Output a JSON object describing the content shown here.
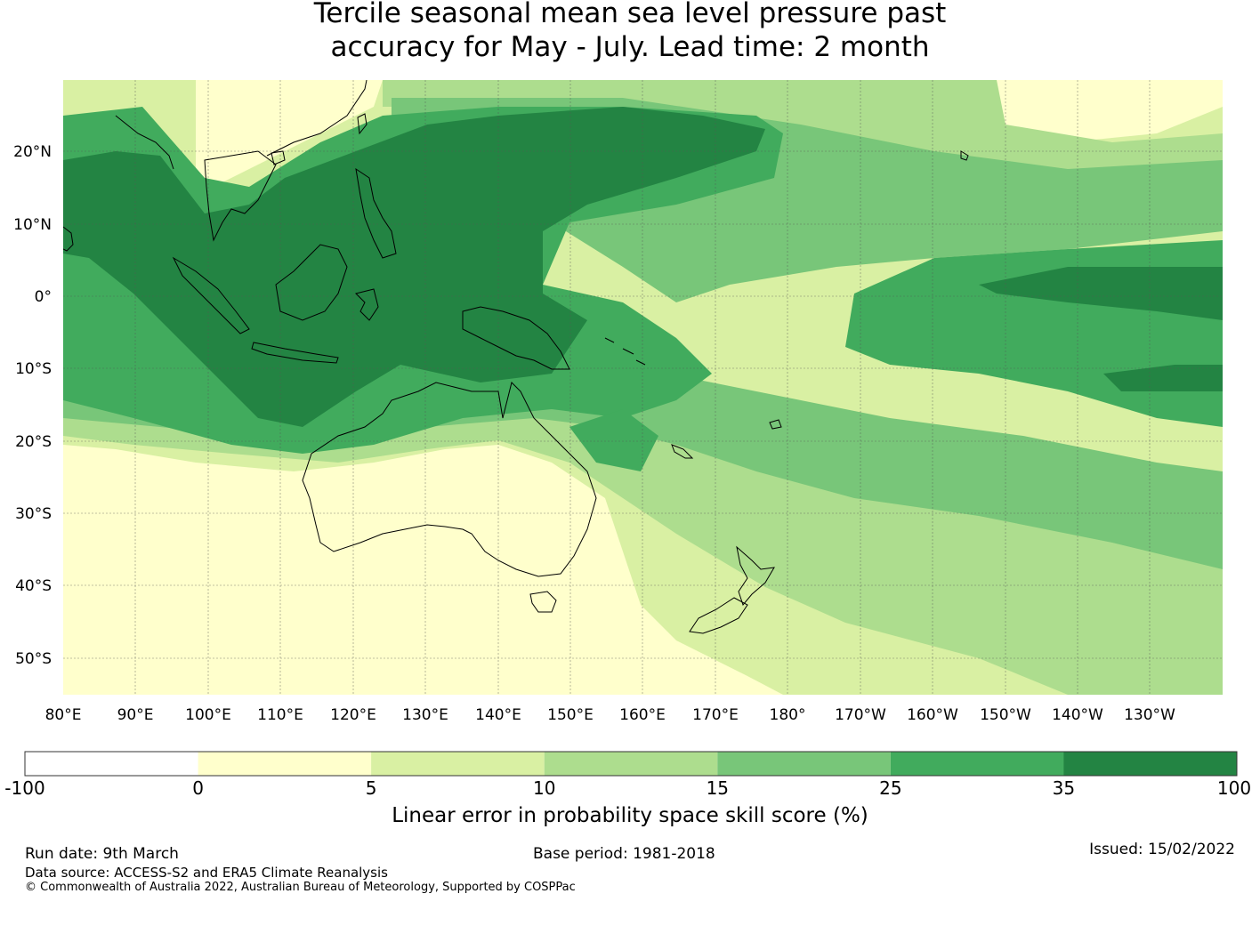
{
  "title": {
    "line1": "Tercile seasonal mean sea level pressure past",
    "line2": "accuracy for May - July. Lead time: 2 month"
  },
  "map": {
    "lat_ticks": [
      "20°N",
      "10°N",
      "0°",
      "10°S",
      "20°S",
      "30°S",
      "40°S",
      "50°S"
    ],
    "lon_ticks": [
      "80°E",
      "90°E",
      "100°E",
      "110°E",
      "120°E",
      "130°E",
      "140°E",
      "150°E",
      "160°E",
      "170°E",
      "180°",
      "170°W",
      "160°W",
      "150°W",
      "140°W",
      "130°W"
    ],
    "extent": {
      "lon": [
        80,
        240
      ],
      "lat": [
        -55,
        30
      ]
    },
    "gridlines": true
  },
  "colorbar": {
    "ticks": [
      "-100",
      "0",
      "5",
      "10",
      "15",
      "25",
      "35",
      "100"
    ],
    "colors": [
      "#ffffff",
      "#ffffcc",
      "#d9f0a3",
      "#addd8e",
      "#78c679",
      "#41ab5d",
      "#238443"
    ],
    "label": "Linear error in probability space skill score (%)"
  },
  "footer": {
    "run_date": "Run date: 9th March",
    "base_period": "Base period: 1981-2018",
    "issued": "Issued: 15/02/2022",
    "data_source": "Data source: ACCESS-S2 and ERA5 Climate Reanalysis",
    "copyright": "© Commonwealth of Australia 2022, Australian Bureau of Meteorology, Supported by COSPPac"
  }
}
